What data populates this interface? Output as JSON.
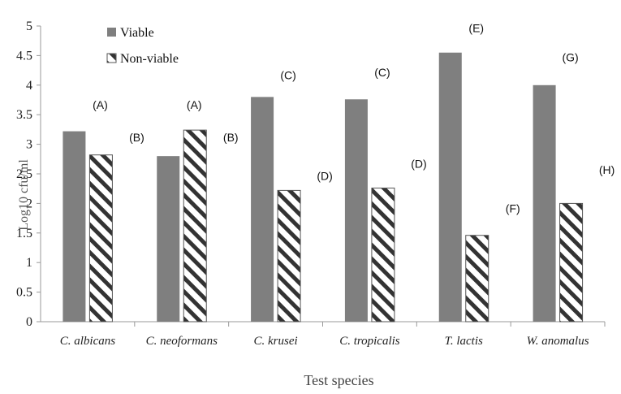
{
  "chart_data": {
    "type": "bar",
    "title": "",
    "xlabel": "Test species",
    "ylabel": "Log10 cfu/ml",
    "ylim": [
      0,
      5
    ],
    "yticks": [
      "0",
      "0.5",
      "1",
      "1.5",
      "2",
      "2.5",
      "3",
      "3.5",
      "4",
      "4.5",
      "5"
    ],
    "grid": false,
    "legend_position": "top-left",
    "categories": [
      "C. albicans",
      "C. neoformans",
      "C. krusei",
      "C. tropicalis",
      "T. lactis",
      "W. anomalus"
    ],
    "series": [
      {
        "name": "Viable",
        "pattern": "solid",
        "color": "#7f7f7f",
        "values": [
          3.22,
          2.8,
          3.8,
          3.76,
          4.55,
          4.0
        ],
        "annotations": [
          "(A)",
          "(A)",
          "(C)",
          "(C)",
          "(E)",
          "(G)"
        ]
      },
      {
        "name": "Non-viable",
        "pattern": "hatched",
        "color": "#333333",
        "values": [
          2.82,
          3.24,
          2.22,
          2.26,
          1.46,
          2.0
        ],
        "annotations": [
          "(B)",
          "(B)",
          "(D)",
          "(D)",
          "(F)",
          "(H)"
        ]
      }
    ],
    "annotation_y": {
      "viable": [
        3.6,
        3.6,
        4.1,
        4.15,
        4.9,
        4.4
      ],
      "nonviable": [
        3.05,
        3.05,
        2.4,
        2.6,
        1.85,
        2.5
      ]
    }
  }
}
